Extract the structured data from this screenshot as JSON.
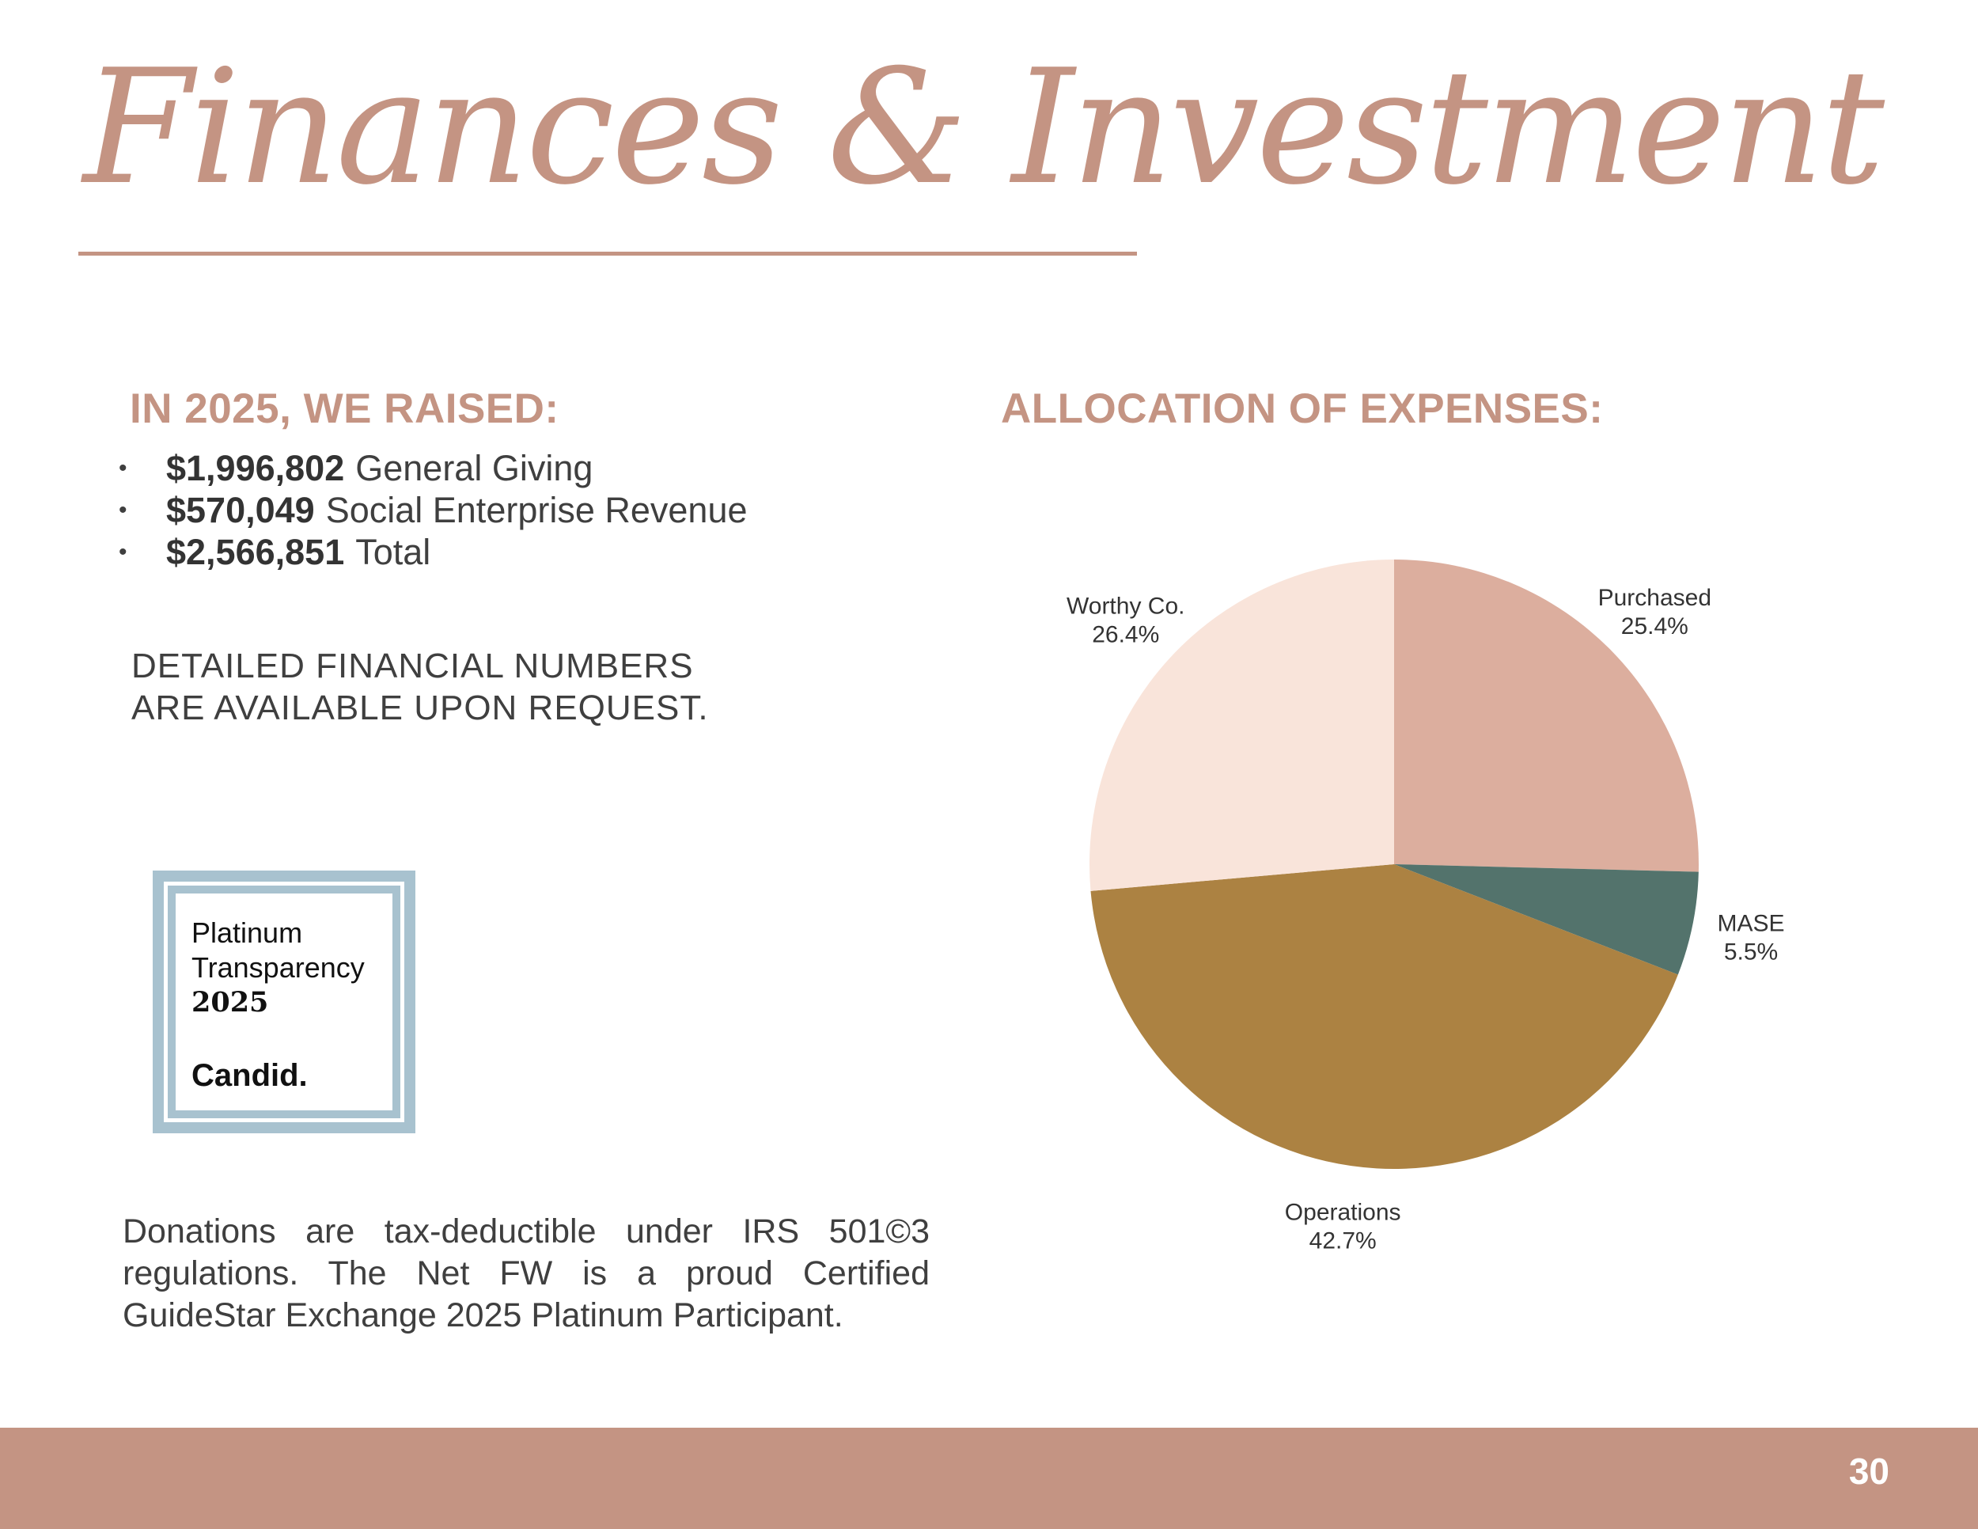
{
  "title": "Finances & Investment",
  "raised": {
    "heading": "IN 2025, WE RAISED:",
    "items": [
      {
        "amount": "$1,996,802",
        "label": "General Giving"
      },
      {
        "amount": "$570,049",
        "label": "Social Enterprise Revenue"
      },
      {
        "amount": "$2,566,851",
        "label": "Total"
      }
    ]
  },
  "detail_note": [
    "DETAILED FINANCIAL NUMBERS",
    "ARE AVAILABLE UPON REQUEST."
  ],
  "seal": {
    "line1": "Platinum",
    "line2": "Transparency",
    "year": "2025",
    "brand": "Candid."
  },
  "tax_note": "Donations are tax-deductible under IRS 501©3 regulations. The Net FW is a proud Certified GuideStar Exchange 2025 Platinum Participant.",
  "allocation_heading": "ALLOCATION OF EXPENSES:",
  "chart_data": {
    "type": "pie",
    "title": "ALLOCATION OF EXPENSES:",
    "start_angle_deg": 0,
    "direction": "clockwise",
    "slices": [
      {
        "label": "Purchased",
        "value": 25.4,
        "display": "25.4%",
        "color": "#dcae9e"
      },
      {
        "label": "MASE",
        "value": 5.5,
        "display": "5.5%",
        "color": "#53736c"
      },
      {
        "label": "Operations",
        "value": 42.7,
        "display": "42.7%",
        "color": "#ac8242"
      },
      {
        "label": "Worthy Co.",
        "value": 26.4,
        "display": "26.4%",
        "color": "#f9e4da"
      }
    ]
  },
  "footer": {
    "page_number": "30",
    "color": "#c49483"
  }
}
